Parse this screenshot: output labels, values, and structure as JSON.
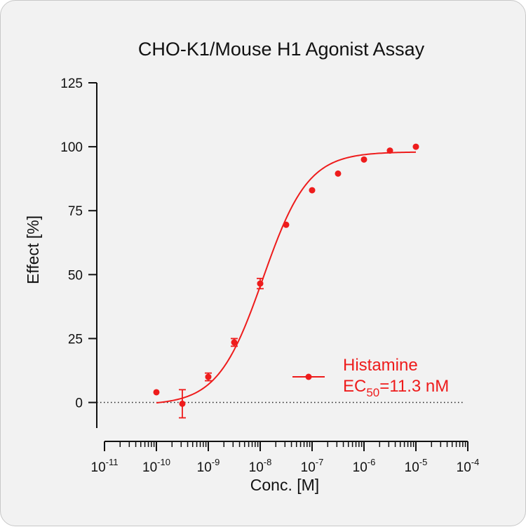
{
  "chart_data": {
    "type": "scatter",
    "title": "CHO-K1/Mouse H1 Agonist Assay",
    "xlabel": "Conc. [M]",
    "ylabel": "Effect  [%]",
    "x_scale": "log",
    "xlim": [
      1e-11,
      0.0001
    ],
    "ylim": [
      -10,
      125
    ],
    "x_tick_base": "10",
    "x_ticks": [
      {
        "value": 1e-11,
        "exponent": "-11"
      },
      {
        "value": 1e-10,
        "exponent": "-10"
      },
      {
        "value": 1e-09,
        "exponent": "-9"
      },
      {
        "value": 1e-08,
        "exponent": "-8"
      },
      {
        "value": 1e-07,
        "exponent": "-7"
      },
      {
        "value": 1e-06,
        "exponent": "-6"
      },
      {
        "value": 1e-05,
        "exponent": "-5"
      },
      {
        "value": 0.0001,
        "exponent": "-4"
      }
    ],
    "y_ticks": [
      0,
      25,
      50,
      75,
      100,
      125
    ],
    "baseline": 0,
    "series": [
      {
        "name": "Histamine",
        "color": "#ee1c1c",
        "points": [
          {
            "x": 1e-10,
            "y": 4,
            "err": 0
          },
          {
            "x": 3.16e-10,
            "y": -0.5,
            "err": 5.5
          },
          {
            "x": 1e-09,
            "y": 10,
            "err": 1.5
          },
          {
            "x": 3.16e-09,
            "y": 23.5,
            "err": 1.5
          },
          {
            "x": 1e-08,
            "y": 46.5,
            "err": 2
          },
          {
            "x": 3.16e-08,
            "y": 69.5,
            "err": 0
          },
          {
            "x": 1e-07,
            "y": 83,
            "err": 0
          },
          {
            "x": 3.16e-07,
            "y": 89.5,
            "err": 0
          },
          {
            "x": 1e-06,
            "y": 95,
            "err": 0
          },
          {
            "x": 3.16e-06,
            "y": 98.5,
            "err": 0
          },
          {
            "x": 1e-05,
            "y": 100,
            "err": 0
          }
        ],
        "fit": {
          "bottom": -1,
          "top": 98,
          "ec50": 1.13e-08,
          "hill": 1,
          "x_from": 1e-10,
          "x_to": 1e-05
        }
      }
    ],
    "legend": {
      "position": "bottom-right",
      "label": "Histamine",
      "ec50_prefix": "EC",
      "ec50_subscript": "50",
      "ec50_value": "=11.3 nM"
    }
  }
}
